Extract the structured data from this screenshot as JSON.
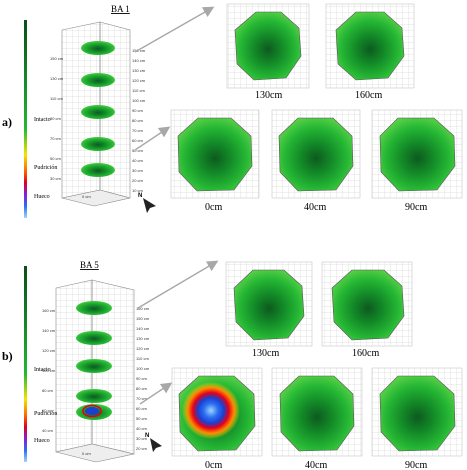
{
  "legend": {
    "intact": "Intacto",
    "rot": "Pudrición",
    "hollow": "Hueco"
  },
  "colors": {
    "intact_dark": "#0b4d1a",
    "intact": "#22b832",
    "rot_yellow": "#f5e400",
    "rot_red": "#e3001b",
    "hollow_blue": "#2a6ff2",
    "hollow_light": "#9fd3ff",
    "arrow_grey": "#a8a8a8"
  },
  "north_label": "N",
  "panels": [
    {
      "label": "a)",
      "tree": "BA 1",
      "heights": [
        "130cm",
        "160cm",
        "0cm",
        "40cm",
        "90cm"
      ],
      "rot_at": ""
    },
    {
      "label": "b)",
      "tree": "BA 5",
      "heights": [
        "130cm",
        "160cm",
        "0cm",
        "40cm",
        "90cm"
      ],
      "rot_at": "0cm"
    }
  ]
}
